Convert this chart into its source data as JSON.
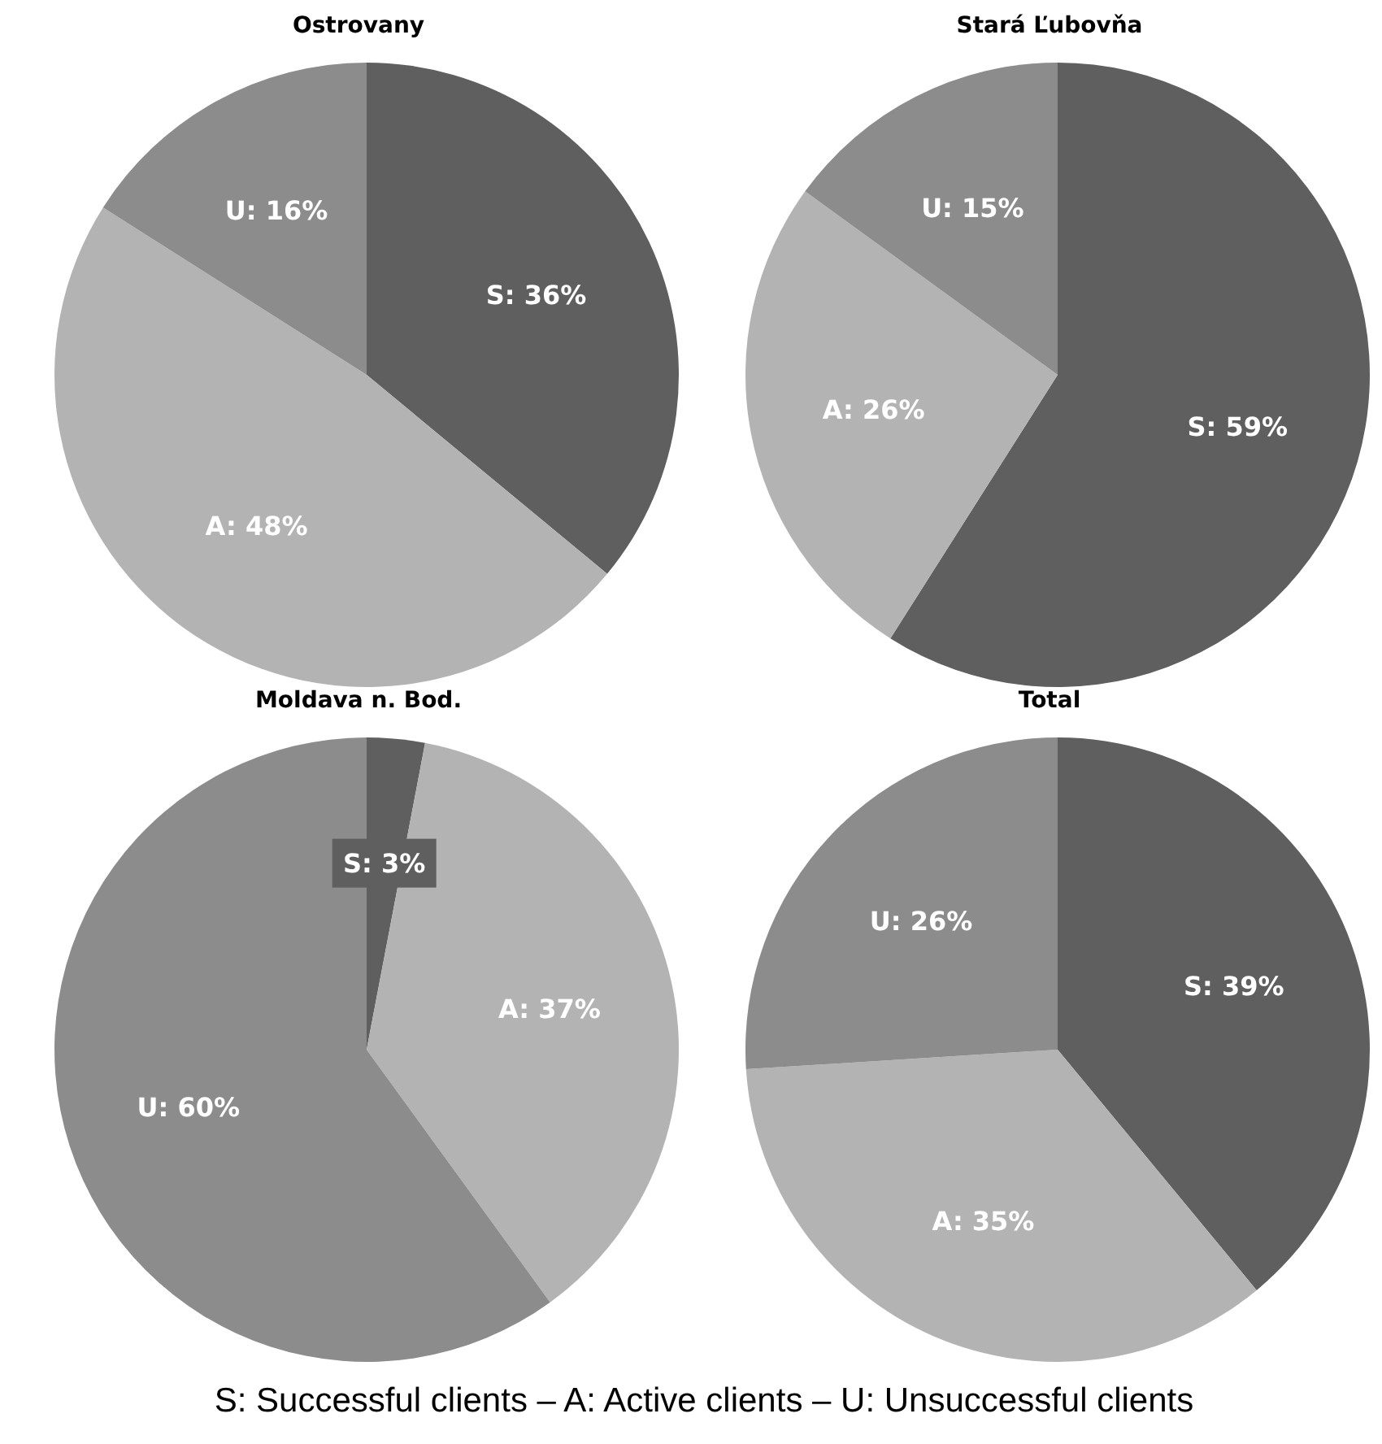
{
  "chart_data": [
    {
      "type": "pie",
      "title": "Ostrovany",
      "categories": [
        "S",
        "A",
        "U"
      ],
      "values": [
        36,
        48,
        16
      ],
      "colors": [
        "#5f5f5f",
        "#b3b3b3",
        "#8c8c8c"
      ],
      "value_labels": [
        "36%",
        "48%",
        "16%"
      ]
    },
    {
      "type": "pie",
      "title": "Stará Ľubovňa",
      "categories": [
        "S",
        "A",
        "U"
      ],
      "values": [
        59,
        26,
        15
      ],
      "colors": [
        "#5f5f5f",
        "#b3b3b3",
        "#8c8c8c"
      ],
      "value_labels": [
        "59%",
        "26%",
        "15%"
      ]
    },
    {
      "type": "pie",
      "title": "Moldava n. Bod.",
      "categories": [
        "S",
        "A",
        "U"
      ],
      "values": [
        3,
        37,
        60
      ],
      "colors": [
        "#5f5f5f",
        "#b3b3b3",
        "#8c8c8c"
      ],
      "value_labels": [
        "3%",
        "37%",
        "60%"
      ]
    },
    {
      "type": "pie",
      "title": "Total",
      "categories": [
        "S",
        "A",
        "U"
      ],
      "values": [
        39,
        35,
        26
      ],
      "colors": [
        "#5f5f5f",
        "#b3b3b3",
        "#8c8c8c"
      ],
      "value_labels": [
        "39%",
        "35%",
        "26%"
      ],
      "annotations": [
        "S: Successful clients – A: Active clients – U: Unsuccessful clients"
      ]
    }
  ]
}
